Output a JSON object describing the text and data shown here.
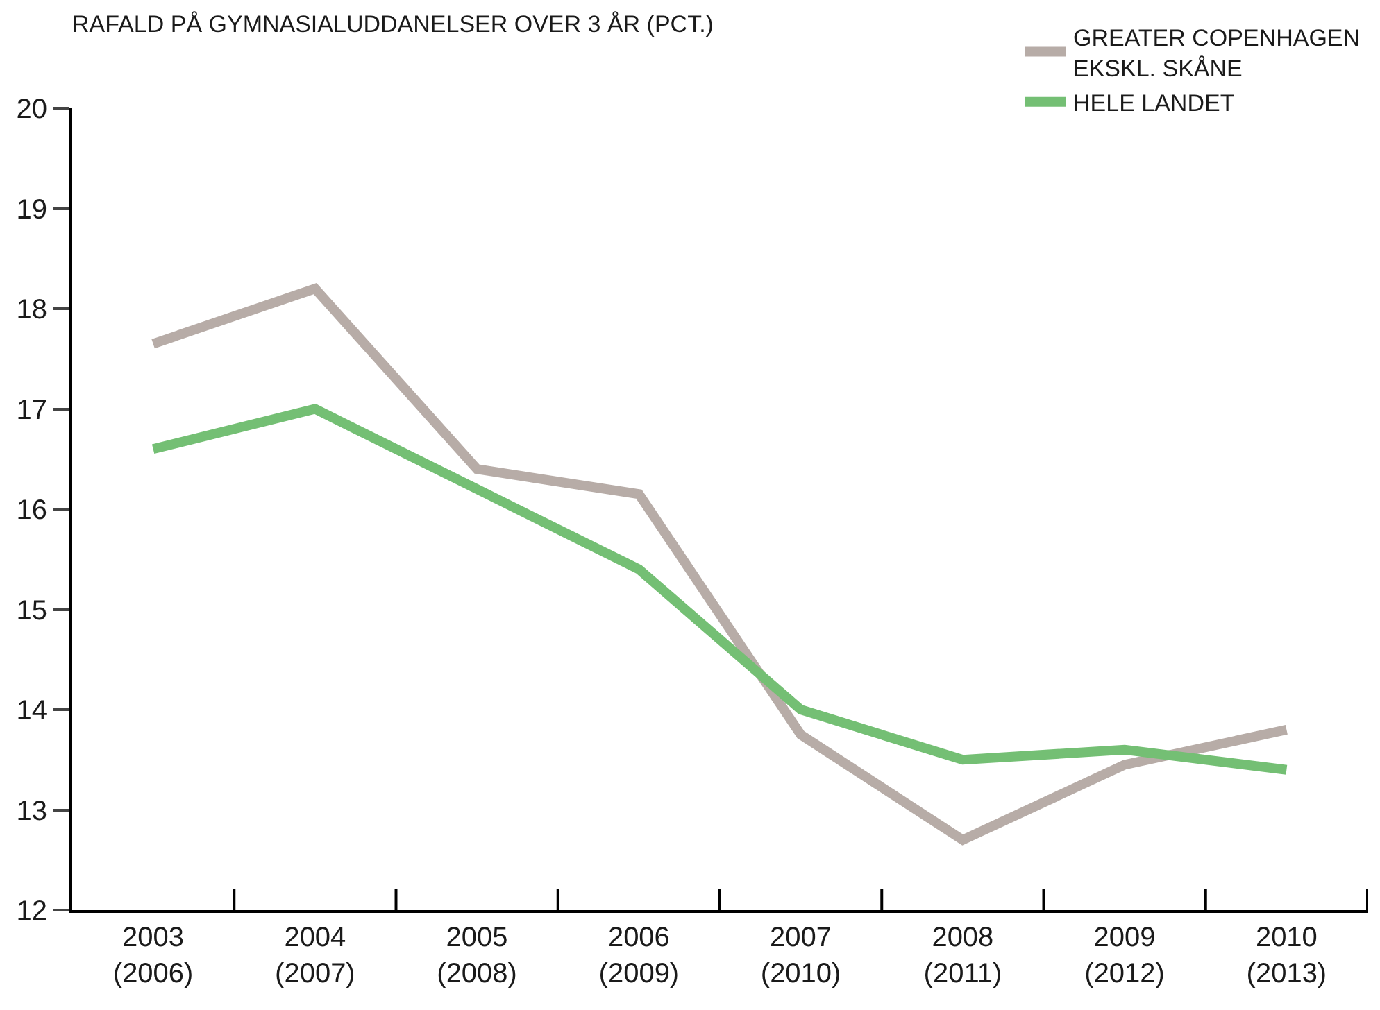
{
  "chart_data": {
    "type": "line",
    "title": "RAFALD PÅ GYMNASIALUDDANELSER OVER 3 ÅR (PCT.)",
    "categories": [
      "2003\n(2006)",
      "2004\n(2007)",
      "2005\n(2008)",
      "2006\n(2009)",
      "2007\n(2010)",
      "2008\n(2011)",
      "2009\n(2012)",
      "2010\n(2013)"
    ],
    "series": [
      {
        "name": "GREATER COPENHAGEN\nEKSKL. SKÅNE",
        "color": "#b7aca7",
        "values": [
          17.65,
          18.2,
          16.4,
          16.15,
          13.75,
          12.7,
          13.45,
          13.8
        ]
      },
      {
        "name": "HELE LANDET",
        "color": "#74bf74",
        "values": [
          16.6,
          17.0,
          16.2,
          15.4,
          14.0,
          13.5,
          13.6,
          13.4
        ]
      }
    ],
    "ylim": [
      12,
      20
    ],
    "yticks": [
      12,
      13,
      14,
      15,
      16,
      17,
      18,
      19,
      20
    ],
    "legend": "top right",
    "marker": "none",
    "line_style": "solid"
  }
}
